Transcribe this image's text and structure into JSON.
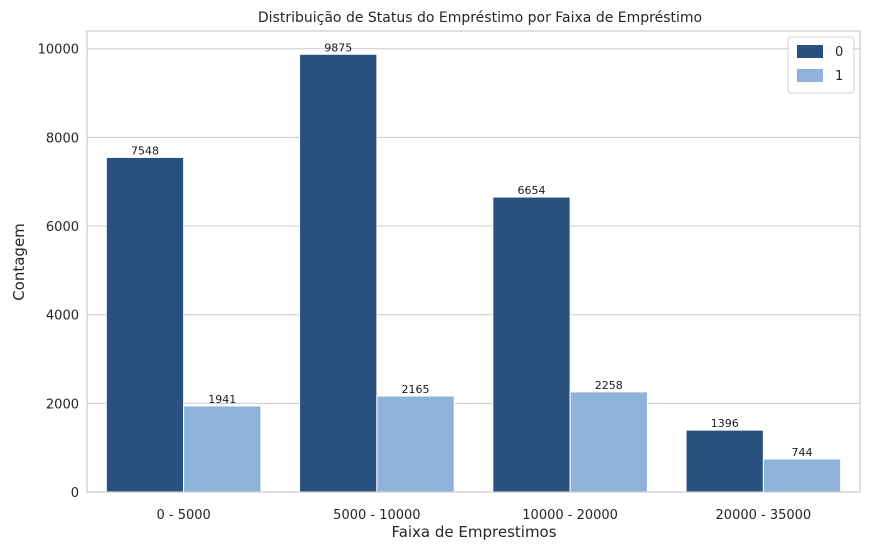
{
  "chart_data": {
    "type": "bar",
    "title": "Distribuição de Status do Empréstimo por Faixa de Empréstimo",
    "xlabel": "Faixa de Emprestimos",
    "ylabel": "Contagem",
    "categories": [
      "0 - 5000",
      "5000 - 10000",
      "10000 - 20000",
      "20000 - 35000"
    ],
    "series": [
      {
        "name": "0",
        "color": "#29517f",
        "values": [
          7548,
          9875,
          6654,
          1396
        ]
      },
      {
        "name": "1",
        "color": "#8db3db",
        "values": [
          1941,
          2165,
          2258,
          744
        ]
      }
    ],
    "ylim": [
      0,
      10400
    ],
    "yticks": [
      0,
      2000,
      4000,
      6000,
      8000,
      10000
    ],
    "grid": "y",
    "legend_position": "top-right"
  }
}
